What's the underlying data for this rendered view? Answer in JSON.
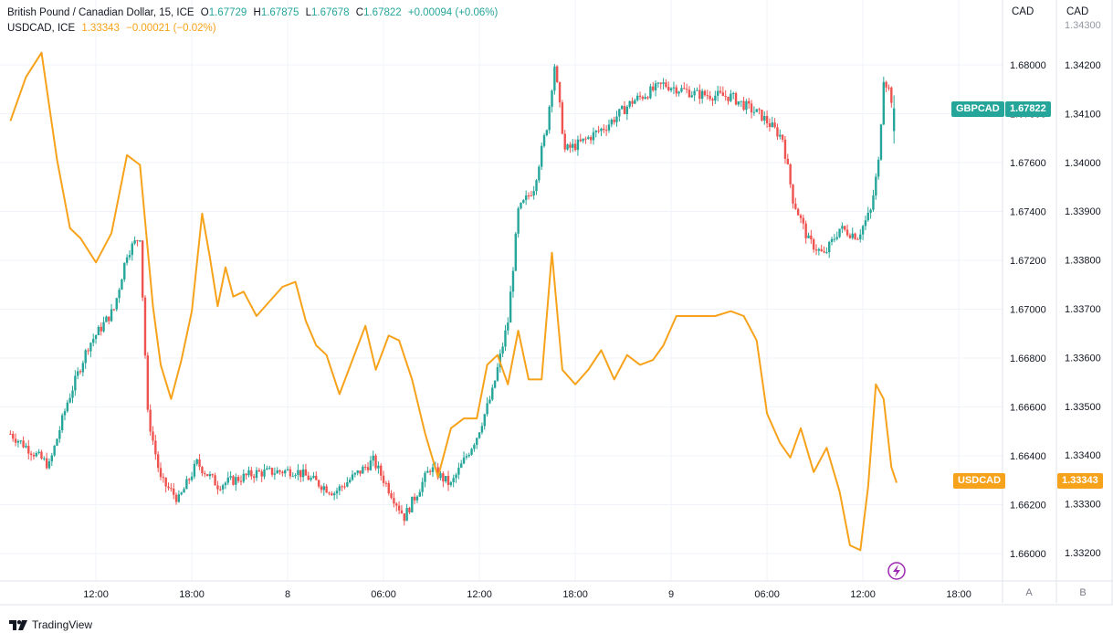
{
  "legend": {
    "main": {
      "name": "British Pound / Canadian Dollar, 15, ICE",
      "o_label": "O",
      "o": "1.67729",
      "h_label": "H",
      "h": "1.67875",
      "l_label": "L",
      "l": "1.67678",
      "c_label": "C",
      "c": "1.67822",
      "change": "+0.00094 (+0.06%)"
    },
    "compare": {
      "name": "USDCAD, ICE",
      "value": "1.33343",
      "change": "−0.00021 (−0.02%)"
    }
  },
  "axes": {
    "left_header": "CAD",
    "right_header": "CAD",
    "left_scale_label": "A",
    "right_scale_label": "B"
  },
  "badges": {
    "gbpcad_name": "GBPCAD",
    "gbpcad_value": "1.67822",
    "usdcad_name": "USDCAD",
    "usdcad_value": "1.33343"
  },
  "footer": {
    "brand": "TradingView"
  },
  "colors": {
    "up": "#26a69a",
    "down": "#ef5350",
    "usdcad_line": "#f7a21b",
    "grid": "#f0f3fa",
    "axis_text": "#131722",
    "lightning": "#9c27b0"
  },
  "chart_data": [
    {
      "type": "candlestick",
      "series_name": "GBPCAD",
      "axis": "A",
      "ylim": [
        1.6595,
        1.6835
      ],
      "y_ticks": [
        "1.68000",
        "1.67800",
        "1.67600",
        "1.67400",
        "1.67200",
        "1.67000",
        "1.66800",
        "1.66600",
        "1.66400",
        "1.66200",
        "1.66000"
      ],
      "x_ticks": [
        "12:00",
        "18:00",
        "8",
        "06:00",
        "12:00",
        "18:00",
        "9",
        "06:00",
        "12:00",
        "18:00"
      ],
      "grid": true,
      "last_value": 1.67822,
      "close_path": [
        {
          "bar": 0,
          "close": 1.6649
        },
        {
          "bar": 15,
          "close": 1.6636
        },
        {
          "bar": 22,
          "close": 1.6662
        },
        {
          "bar": 30,
          "close": 1.6685
        },
        {
          "bar": 40,
          "close": 1.67
        },
        {
          "bar": 45,
          "close": 1.6723
        },
        {
          "bar": 50,
          "close": 1.673
        },
        {
          "bar": 53,
          "close": 1.6657
        },
        {
          "bar": 58,
          "close": 1.663
        },
        {
          "bar": 65,
          "close": 1.6622
        },
        {
          "bar": 72,
          "close": 1.6637
        },
        {
          "bar": 80,
          "close": 1.6628
        },
        {
          "bar": 95,
          "close": 1.6633
        },
        {
          "bar": 110,
          "close": 1.6634
        },
        {
          "bar": 125,
          "close": 1.6625
        },
        {
          "bar": 140,
          "close": 1.6638
        },
        {
          "bar": 152,
          "close": 1.6615
        },
        {
          "bar": 162,
          "close": 1.6635
        },
        {
          "bar": 170,
          "close": 1.6628
        },
        {
          "bar": 180,
          "close": 1.6648
        },
        {
          "bar": 186,
          "close": 1.6666
        },
        {
          "bar": 192,
          "close": 1.6695
        },
        {
          "bar": 196,
          "close": 1.674
        },
        {
          "bar": 202,
          "close": 1.675
        },
        {
          "bar": 207,
          "close": 1.6775
        },
        {
          "bar": 210,
          "close": 1.68
        },
        {
          "bar": 214,
          "close": 1.6765
        },
        {
          "bar": 220,
          "close": 1.6768
        },
        {
          "bar": 230,
          "close": 1.6775
        },
        {
          "bar": 240,
          "close": 1.6785
        },
        {
          "bar": 252,
          "close": 1.6792
        },
        {
          "bar": 265,
          "close": 1.6788
        },
        {
          "bar": 278,
          "close": 1.6787
        },
        {
          "bar": 290,
          "close": 1.6779
        },
        {
          "bar": 298,
          "close": 1.677
        },
        {
          "bar": 302,
          "close": 1.6745
        },
        {
          "bar": 308,
          "close": 1.6728
        },
        {
          "bar": 314,
          "close": 1.6722
        },
        {
          "bar": 320,
          "close": 1.6733
        },
        {
          "bar": 327,
          "close": 1.673
        },
        {
          "bar": 332,
          "close": 1.674
        },
        {
          "bar": 335,
          "close": 1.676
        },
        {
          "bar": 337,
          "close": 1.6795
        },
        {
          "bar": 339,
          "close": 1.679
        },
        {
          "bar": 341,
          "close": 1.67822
        }
      ]
    },
    {
      "type": "line",
      "series_name": "USDCAD",
      "axis": "B",
      "ylim": [
        1.33185,
        1.34305
      ],
      "y_ticks": [
        "1.34300",
        "1.34200",
        "1.34100",
        "1.34000",
        "1.33900",
        "1.33800",
        "1.33700",
        "1.33600",
        "1.33500",
        "1.33400",
        "1.33300",
        "1.33200"
      ],
      "last_value": 1.33343,
      "points": [
        {
          "bar": 0,
          "y": 1.34085
        },
        {
          "bar": 6,
          "y": 1.34175
        },
        {
          "bar": 12,
          "y": 1.34225
        },
        {
          "bar": 18,
          "y": 1.34005
        },
        {
          "bar": 23,
          "y": 1.33865
        },
        {
          "bar": 27,
          "y": 1.33845
        },
        {
          "bar": 33,
          "y": 1.33795
        },
        {
          "bar": 39,
          "y": 1.33855
        },
        {
          "bar": 45,
          "y": 1.34015
        },
        {
          "bar": 50,
          "y": 1.33995
        },
        {
          "bar": 55,
          "y": 1.33705
        },
        {
          "bar": 58,
          "y": 1.33585
        },
        {
          "bar": 62,
          "y": 1.33515
        },
        {
          "bar": 66,
          "y": 1.33595
        },
        {
          "bar": 70,
          "y": 1.33695
        },
        {
          "bar": 74,
          "y": 1.33895
        },
        {
          "bar": 77,
          "y": 1.33805
        },
        {
          "bar": 80,
          "y": 1.33705
        },
        {
          "bar": 83,
          "y": 1.33785
        },
        {
          "bar": 86,
          "y": 1.33725
        },
        {
          "bar": 90,
          "y": 1.33735
        },
        {
          "bar": 95,
          "y": 1.33685
        },
        {
          "bar": 100,
          "y": 1.33715
        },
        {
          "bar": 105,
          "y": 1.33745
        },
        {
          "bar": 110,
          "y": 1.33755
        },
        {
          "bar": 114,
          "y": 1.33675
        },
        {
          "bar": 118,
          "y": 1.33625
        },
        {
          "bar": 122,
          "y": 1.33605
        },
        {
          "bar": 127,
          "y": 1.33525
        },
        {
          "bar": 132,
          "y": 1.33595
        },
        {
          "bar": 137,
          "y": 1.33665
        },
        {
          "bar": 141,
          "y": 1.33575
        },
        {
          "bar": 146,
          "y": 1.33645
        },
        {
          "bar": 150,
          "y": 1.33635
        },
        {
          "bar": 155,
          "y": 1.33555
        },
        {
          "bar": 160,
          "y": 1.33445
        },
        {
          "bar": 165,
          "y": 1.33355
        },
        {
          "bar": 170,
          "y": 1.33455
        },
        {
          "bar": 175,
          "y": 1.33475
        },
        {
          "bar": 180,
          "y": 1.33475
        },
        {
          "bar": 184,
          "y": 1.33585
        },
        {
          "bar": 188,
          "y": 1.33605
        },
        {
          "bar": 192,
          "y": 1.33545
        },
        {
          "bar": 196,
          "y": 1.33655
        },
        {
          "bar": 200,
          "y": 1.33555
        },
        {
          "bar": 205,
          "y": 1.33555
        },
        {
          "bar": 209,
          "y": 1.33815
        },
        {
          "bar": 213,
          "y": 1.33575
        },
        {
          "bar": 218,
          "y": 1.33545
        },
        {
          "bar": 223,
          "y": 1.33575
        },
        {
          "bar": 228,
          "y": 1.33615
        },
        {
          "bar": 233,
          "y": 1.33555
        },
        {
          "bar": 238,
          "y": 1.33605
        },
        {
          "bar": 243,
          "y": 1.33585
        },
        {
          "bar": 248,
          "y": 1.33595
        },
        {
          "bar": 252,
          "y": 1.33625
        },
        {
          "bar": 257,
          "y": 1.33685
        },
        {
          "bar": 262,
          "y": 1.33685
        },
        {
          "bar": 267,
          "y": 1.33685
        },
        {
          "bar": 272,
          "y": 1.33685
        },
        {
          "bar": 278,
          "y": 1.33695
        },
        {
          "bar": 283,
          "y": 1.33685
        },
        {
          "bar": 288,
          "y": 1.33635
        },
        {
          "bar": 292,
          "y": 1.33485
        },
        {
          "bar": 297,
          "y": 1.33425
        },
        {
          "bar": 301,
          "y": 1.33395
        },
        {
          "bar": 305,
          "y": 1.33455
        },
        {
          "bar": 310,
          "y": 1.33365
        },
        {
          "bar": 315,
          "y": 1.33415
        },
        {
          "bar": 320,
          "y": 1.33325
        },
        {
          "bar": 324,
          "y": 1.33215
        },
        {
          "bar": 328,
          "y": 1.33205
        },
        {
          "bar": 331,
          "y": 1.33335
        },
        {
          "bar": 334,
          "y": 1.33545
        },
        {
          "bar": 337,
          "y": 1.33515
        },
        {
          "bar": 340,
          "y": 1.33375
        },
        {
          "bar": 342,
          "y": 1.33343
        }
      ]
    }
  ]
}
